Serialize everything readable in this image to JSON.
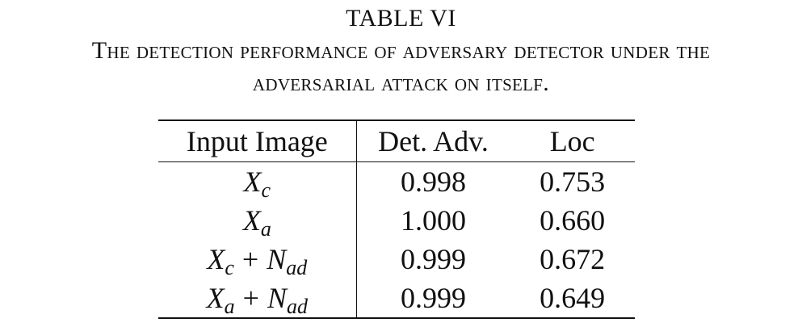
{
  "caption": {
    "number": "TABLE VI",
    "title_line1": "The detection performance of adversary detector under the",
    "title_line2": "adversarial attack on itself."
  },
  "table": {
    "headers": [
      "Input Image",
      "Det. Adv.",
      "Loc"
    ],
    "rows": [
      {
        "input": {
          "base": "X",
          "sub": "c",
          "plus": "",
          "noise_base": "",
          "noise_sub": ""
        },
        "det_adv": "0.998",
        "loc": "0.753"
      },
      {
        "input": {
          "base": "X",
          "sub": "a",
          "plus": "",
          "noise_base": "",
          "noise_sub": ""
        },
        "det_adv": "1.000",
        "loc": "0.660"
      },
      {
        "input": {
          "base": "X",
          "sub": "c",
          "plus": "+",
          "noise_base": "N",
          "noise_sub": "ad"
        },
        "det_adv": "0.999",
        "loc": "0.672"
      },
      {
        "input": {
          "base": "X",
          "sub": "a",
          "plus": "+",
          "noise_base": "N",
          "noise_sub": "ad"
        },
        "det_adv": "0.999",
        "loc": "0.649"
      }
    ]
  }
}
